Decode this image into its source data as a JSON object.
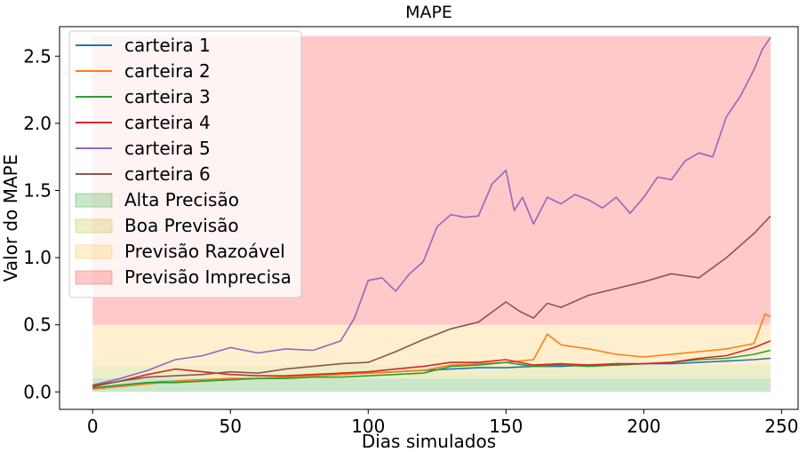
{
  "chart_data": {
    "type": "line",
    "title": "MAPE",
    "xlabel": "Dias simulados",
    "ylabel": "Valor do MAPE",
    "xlim": [
      -12,
      256
    ],
    "ylim": [
      -0.13,
      2.72
    ],
    "xticks": [
      0,
      50,
      100,
      150,
      200,
      250
    ],
    "xtick_labels": [
      "0",
      "50",
      "100",
      "150",
      "200",
      "250"
    ],
    "yticks": [
      0.0,
      0.5,
      1.0,
      1.5,
      2.0,
      2.5
    ],
    "ytick_labels": [
      "0.0",
      "0.5",
      "1.0",
      "1.5",
      "2.0",
      "2.5"
    ],
    "grid": false,
    "legend_position": "top-left",
    "bands": [
      {
        "name": "Alta Precisão",
        "y0": 0.0,
        "y1": 0.1,
        "x0": 0,
        "x1": 246,
        "color": "#2ca02c",
        "opacity": 0.25
      },
      {
        "name": "Boa Previsão",
        "y0": 0.1,
        "y1": 0.2,
        "x0": 0,
        "x1": 246,
        "color": "#bcbd22",
        "opacity": 0.25
      },
      {
        "name": "Previsão Razoável",
        "y0": 0.2,
        "y1": 0.5,
        "x0": 0,
        "x1": 246,
        "color": "#ffbf3f",
        "opacity": 0.25
      },
      {
        "name": "Previsão Imprecisa",
        "y0": 0.5,
        "y1": 2.65,
        "x0": 0,
        "x1": 246,
        "color": "#ff4d4d",
        "opacity": 0.3
      }
    ],
    "series": [
      {
        "name": "carteira 1",
        "color": "#1f77b4",
        "x": [
          0,
          10,
          20,
          30,
          40,
          50,
          60,
          70,
          80,
          90,
          100,
          110,
          120,
          130,
          140,
          150,
          160,
          170,
          180,
          190,
          200,
          210,
          220,
          230,
          240,
          246
        ],
        "y": [
          0.03,
          0.05,
          0.07,
          0.08,
          0.09,
          0.1,
          0.1,
          0.11,
          0.12,
          0.13,
          0.14,
          0.15,
          0.16,
          0.17,
          0.18,
          0.18,
          0.19,
          0.19,
          0.2,
          0.2,
          0.21,
          0.21,
          0.22,
          0.23,
          0.24,
          0.25
        ]
      },
      {
        "name": "carteira 2",
        "color": "#ff7f0e",
        "x": [
          0,
          10,
          20,
          30,
          40,
          50,
          60,
          70,
          80,
          90,
          100,
          110,
          120,
          130,
          140,
          150,
          160,
          165,
          170,
          180,
          190,
          200,
          210,
          220,
          230,
          240,
          244,
          246
        ],
        "y": [
          0.02,
          0.04,
          0.06,
          0.08,
          0.09,
          0.1,
          0.1,
          0.11,
          0.12,
          0.13,
          0.14,
          0.15,
          0.16,
          0.2,
          0.21,
          0.22,
          0.24,
          0.43,
          0.35,
          0.32,
          0.28,
          0.26,
          0.28,
          0.3,
          0.32,
          0.36,
          0.58,
          0.56
        ]
      },
      {
        "name": "carteira 3",
        "color": "#2ca02c",
        "x": [
          0,
          10,
          20,
          30,
          40,
          50,
          60,
          70,
          80,
          90,
          100,
          110,
          120,
          130,
          140,
          150,
          160,
          170,
          180,
          190,
          200,
          210,
          220,
          230,
          240,
          246
        ],
        "y": [
          0.03,
          0.05,
          0.07,
          0.07,
          0.08,
          0.09,
          0.1,
          0.1,
          0.11,
          0.11,
          0.12,
          0.13,
          0.14,
          0.19,
          0.2,
          0.22,
          0.19,
          0.2,
          0.19,
          0.2,
          0.21,
          0.22,
          0.24,
          0.25,
          0.28,
          0.31
        ]
      },
      {
        "name": "carteira 4",
        "color": "#d62728",
        "x": [
          0,
          10,
          20,
          30,
          40,
          50,
          60,
          70,
          80,
          90,
          100,
          110,
          120,
          130,
          140,
          150,
          160,
          170,
          180,
          190,
          200,
          210,
          220,
          230,
          240,
          246
        ],
        "y": [
          0.04,
          0.08,
          0.13,
          0.17,
          0.15,
          0.13,
          0.12,
          0.12,
          0.13,
          0.14,
          0.15,
          0.17,
          0.19,
          0.22,
          0.22,
          0.24,
          0.2,
          0.21,
          0.2,
          0.21,
          0.21,
          0.22,
          0.25,
          0.27,
          0.33,
          0.38
        ]
      },
      {
        "name": "carteira 5",
        "color": "#9467bd",
        "x": [
          0,
          10,
          20,
          30,
          40,
          50,
          60,
          70,
          80,
          90,
          95,
          100,
          105,
          110,
          115,
          120,
          125,
          130,
          135,
          140,
          145,
          148,
          150,
          153,
          156,
          160,
          165,
          170,
          175,
          180,
          185,
          190,
          195,
          200,
          205,
          210,
          215,
          220,
          225,
          230,
          235,
          240,
          243,
          246
        ],
        "y": [
          0.05,
          0.1,
          0.16,
          0.24,
          0.27,
          0.33,
          0.29,
          0.32,
          0.31,
          0.38,
          0.55,
          0.83,
          0.85,
          0.75,
          0.88,
          0.97,
          1.23,
          1.32,
          1.3,
          1.31,
          1.55,
          1.61,
          1.65,
          1.35,
          1.45,
          1.25,
          1.45,
          1.4,
          1.47,
          1.43,
          1.37,
          1.45,
          1.33,
          1.45,
          1.6,
          1.58,
          1.72,
          1.78,
          1.75,
          2.05,
          2.2,
          2.4,
          2.55,
          2.64
        ]
      },
      {
        "name": "carteira 6",
        "color": "#8c564b",
        "x": [
          0,
          10,
          20,
          30,
          40,
          50,
          60,
          70,
          80,
          90,
          100,
          110,
          120,
          130,
          140,
          150,
          155,
          160,
          165,
          170,
          180,
          190,
          200,
          210,
          220,
          230,
          240,
          246
        ],
        "y": [
          0.05,
          0.08,
          0.11,
          0.12,
          0.13,
          0.15,
          0.14,
          0.17,
          0.19,
          0.21,
          0.22,
          0.3,
          0.39,
          0.47,
          0.52,
          0.67,
          0.6,
          0.55,
          0.66,
          0.63,
          0.72,
          0.77,
          0.82,
          0.88,
          0.85,
          1.0,
          1.18,
          1.31
        ]
      }
    ]
  }
}
